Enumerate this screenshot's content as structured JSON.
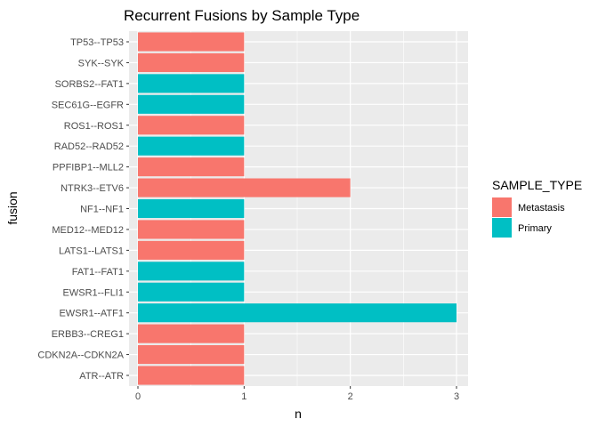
{
  "chart_data": {
    "type": "bar",
    "orientation": "horizontal",
    "title": "Recurrent Fusions by Sample Type",
    "xlabel": "n",
    "ylabel": "fusion",
    "xlim": [
      0,
      3
    ],
    "x_ticks": [
      0,
      1,
      2,
      3
    ],
    "grid": true,
    "legend": {
      "title": "SAMPLE_TYPE",
      "placement": "right",
      "entries": [
        {
          "name": "Metastasis",
          "color": "#F8766D"
        },
        {
          "name": "Primary",
          "color": "#00BFC4"
        }
      ]
    },
    "categories": [
      "TP53--TP53",
      "SYK--SYK",
      "SORBS2--FAT1",
      "SEC61G--EGFR",
      "ROS1--ROS1",
      "RAD52--RAD52",
      "PPFIBP1--MLL2",
      "NTRK3--ETV6",
      "NF1--NF1",
      "MED12--MED12",
      "LATS1--LATS1",
      "FAT1--FAT1",
      "EWSR1--FLI1",
      "EWSR1--ATF1",
      "ERBB3--CREG1",
      "CDKN2A--CDKN2A",
      "ATR--ATR"
    ],
    "values": [
      1,
      1,
      1,
      1,
      1,
      1,
      1,
      2,
      1,
      1,
      1,
      1,
      1,
      3,
      1,
      1,
      1
    ],
    "sample_type": [
      "Metastasis",
      "Metastasis",
      "Primary",
      "Primary",
      "Metastasis",
      "Primary",
      "Metastasis",
      "Metastasis",
      "Primary",
      "Metastasis",
      "Metastasis",
      "Primary",
      "Primary",
      "Primary",
      "Metastasis",
      "Metastasis",
      "Metastasis"
    ]
  }
}
